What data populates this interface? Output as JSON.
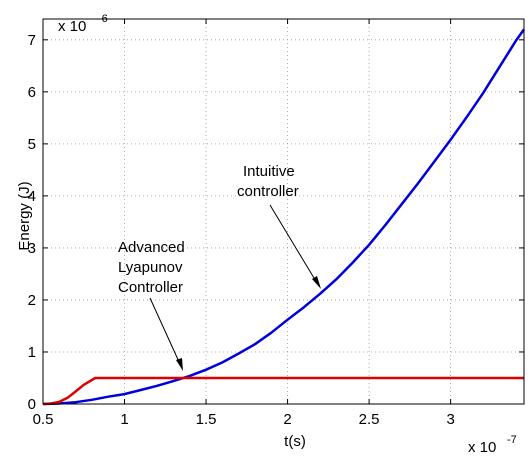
{
  "chart_data": {
    "type": "line",
    "xlabel": "t(s)",
    "ylabel": "Energy (J)",
    "x_multiplier": "x 10",
    "x_multiplier_exp": "-7",
    "y_multiplier": "x 10",
    "y_multiplier_exp": "-6",
    "xlim": [
      0.5,
      3.45
    ],
    "ylim": [
      0,
      7.4
    ],
    "x_ticks": [
      "0.5",
      "1",
      "1.5",
      "2",
      "2.5",
      "3"
    ],
    "x_tick_values": [
      0.5,
      1,
      1.5,
      2,
      2.5,
      3
    ],
    "y_ticks": [
      "0",
      "1",
      "2",
      "3",
      "4",
      "5",
      "6",
      "7"
    ],
    "y_tick_values": [
      0,
      1,
      2,
      3,
      4,
      5,
      6,
      7
    ],
    "grid": true,
    "series": [
      {
        "color": "#0000dd",
        "x": [
          0.5,
          0.6,
          0.7,
          0.8,
          0.9,
          1.0,
          1.1,
          1.2,
          1.3,
          1.4,
          1.5,
          1.6,
          1.7,
          1.8,
          1.9,
          2.0,
          2.1,
          2.2,
          2.3,
          2.4,
          2.5,
          2.6,
          2.7,
          2.8,
          2.9,
          3.0,
          3.1,
          3.2,
          3.3,
          3.4,
          3.45
        ],
        "y": [
          0,
          0.01,
          0.035,
          0.08,
          0.14,
          0.19,
          0.27,
          0.35,
          0.44,
          0.54,
          0.66,
          0.8,
          0.97,
          1.15,
          1.37,
          1.62,
          1.86,
          2.12,
          2.4,
          2.72,
          3.06,
          3.44,
          3.84,
          4.24,
          4.66,
          5.08,
          5.52,
          5.98,
          6.48,
          6.98,
          7.2
        ]
      },
      {
        "color": "#dd0000",
        "x": [
          0.5,
          0.55,
          0.6,
          0.65,
          0.7,
          0.75,
          0.82,
          1.0,
          2.0,
          3.0,
          3.45
        ],
        "y": [
          0,
          0.01,
          0.04,
          0.12,
          0.24,
          0.37,
          0.5,
          0.5,
          0.5,
          0.5,
          0.5
        ]
      }
    ],
    "annotations": {
      "intuitive_line1": "Intuitive",
      "intuitive_line2": "controller",
      "advanced_line1": "Advanced",
      "advanced_line2": "Lyapunov",
      "advanced_line3": "Controller"
    }
  }
}
